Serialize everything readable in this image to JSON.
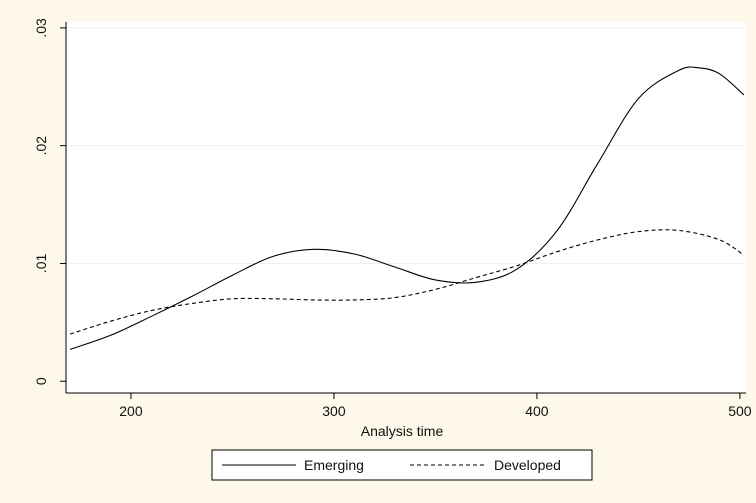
{
  "chart_data": {
    "type": "line",
    "title": "",
    "xlabel": "Analysis time",
    "ylabel": "",
    "xlim": [
      168,
      503
    ],
    "ylim": [
      -0.001,
      0.0305
    ],
    "x_ticks": [
      200,
      300,
      400,
      500
    ],
    "x_tick_labels": [
      "200",
      "300",
      "400",
      "500"
    ],
    "y_ticks": [
      0,
      0.01,
      0.02,
      0.03
    ],
    "y_tick_labels": [
      "0",
      ".01",
      ".02",
      ".03"
    ],
    "grid": "horizontal",
    "legend_position": "bottom",
    "colors": {
      "background": "#fdf8ea",
      "plot_area": "#ffffff",
      "line": "#000000",
      "grid": "#efefef"
    },
    "series": [
      {
        "name": "Emerging",
        "style": "solid",
        "x": [
          170,
          190,
          210,
          230,
          250,
          270,
          290,
          310,
          330,
          350,
          370,
          390,
          410,
          430,
          450,
          470,
          480,
          490,
          502
        ],
        "y": [
          0.0027,
          0.0039,
          0.0055,
          0.0072,
          0.009,
          0.0106,
          0.0112,
          0.0108,
          0.0097,
          0.0086,
          0.0084,
          0.0095,
          0.0128,
          0.0185,
          0.024,
          0.0264,
          0.0266,
          0.0261,
          0.0243
        ]
      },
      {
        "name": "Developed",
        "style": "dashed",
        "x": [
          170,
          190,
          210,
          230,
          250,
          270,
          290,
          310,
          330,
          350,
          370,
          390,
          410,
          430,
          450,
          470,
          490,
          502
        ],
        "y": [
          0.004,
          0.0051,
          0.006,
          0.0066,
          0.007,
          0.007,
          0.0069,
          0.0069,
          0.0071,
          0.0078,
          0.0088,
          0.0098,
          0.011,
          0.012,
          0.0127,
          0.0128,
          0.012,
          0.0107
        ]
      }
    ]
  }
}
